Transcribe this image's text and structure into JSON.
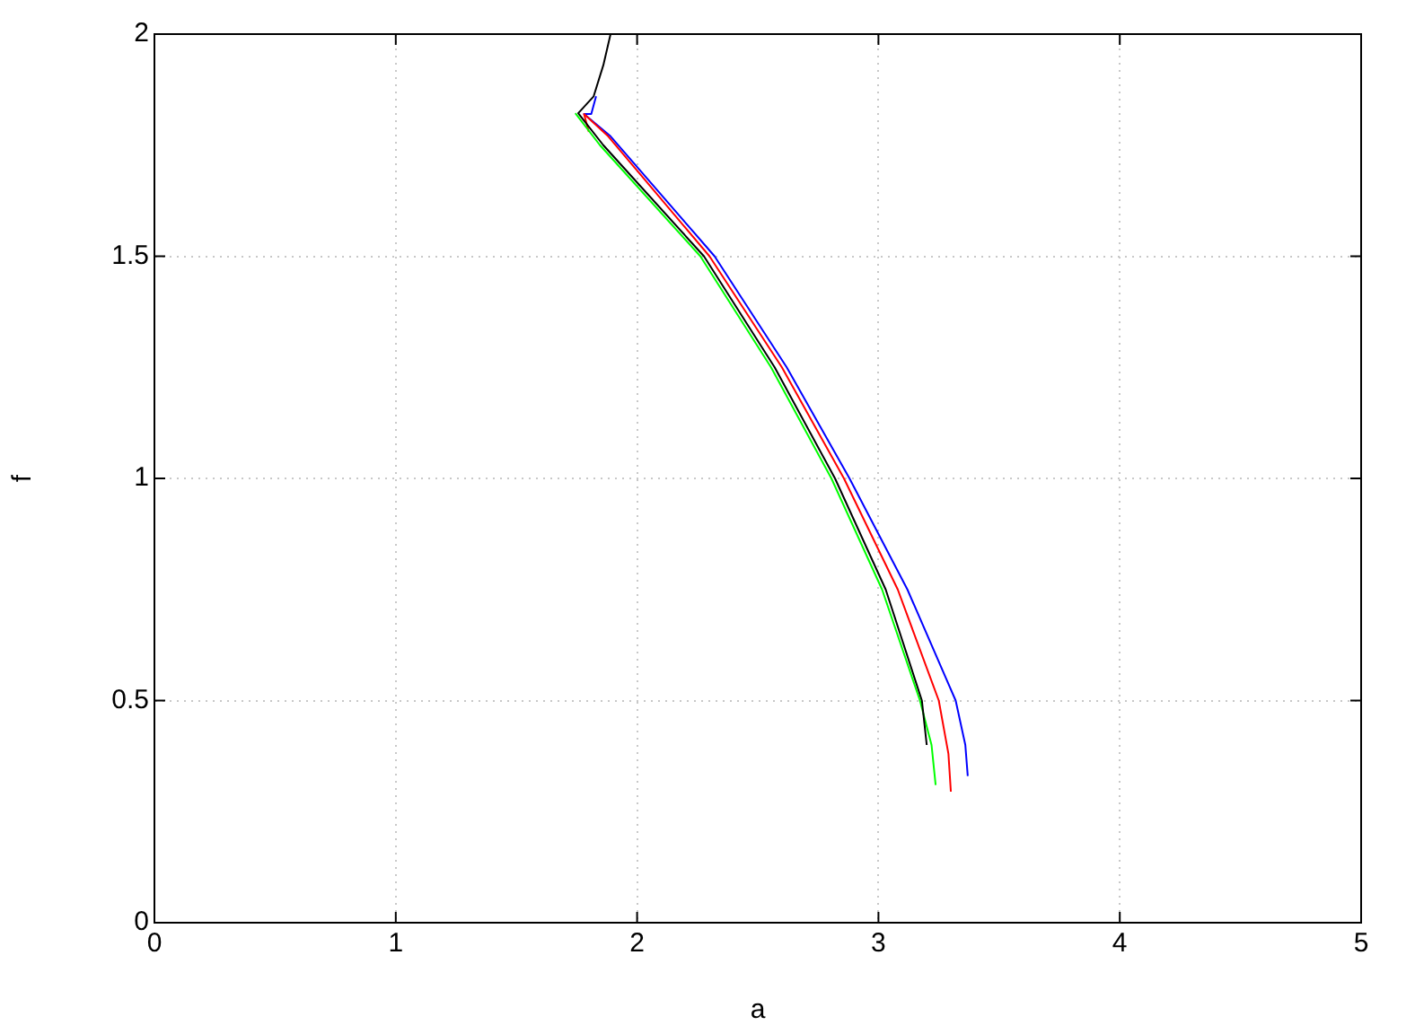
{
  "chart_data": {
    "type": "line",
    "xlabel": "a",
    "ylabel": "f",
    "xlim": [
      0,
      5
    ],
    "xticks": [
      0,
      1,
      2,
      3,
      4,
      5
    ],
    "ylim": [
      0,
      2
    ],
    "yticks": [
      0,
      0.5,
      1,
      1.5,
      2
    ],
    "grid": true,
    "legend": false,
    "marker": "none",
    "line_style": "solid",
    "series": [
      {
        "color": "#000000",
        "x": [
          1.89,
          1.86,
          1.82,
          1.756,
          1.86,
          2.277,
          2.57,
          2.82,
          3.03,
          3.18,
          3.2
        ],
        "values": [
          2.0,
          1.93,
          1.86,
          1.822,
          1.75,
          1.5,
          1.25,
          1,
          0.75,
          0.5,
          0.4
        ]
      },
      {
        "color": "#00ff00",
        "x": [
          1.744,
          1.846,
          2.262,
          2.555,
          2.805,
          3.015,
          3.172,
          3.22,
          3.237
        ],
        "values": [
          1.822,
          1.75,
          1.5,
          1.25,
          1,
          0.75,
          0.5,
          0.4,
          0.31
        ]
      },
      {
        "color": "#ff0000",
        "x": [
          1.8,
          1.78,
          1.88,
          2.3,
          2.6,
          2.857,
          3.08,
          3.25,
          3.29,
          3.3
        ],
        "values": [
          1.78,
          1.82,
          1.77,
          1.5,
          1.25,
          1,
          0.75,
          0.5,
          0.38,
          0.295
        ]
      },
      {
        "color": "#0000ff",
        "x": [
          1.83,
          1.81,
          1.78,
          1.89,
          2.321,
          2.62,
          2.88,
          3.12,
          3.32,
          3.36,
          3.37
        ],
        "values": [
          1.86,
          1.82,
          1.82,
          1.77,
          1.5,
          1.25,
          1,
          0.75,
          0.5,
          0.4,
          0.33
        ]
      }
    ]
  }
}
